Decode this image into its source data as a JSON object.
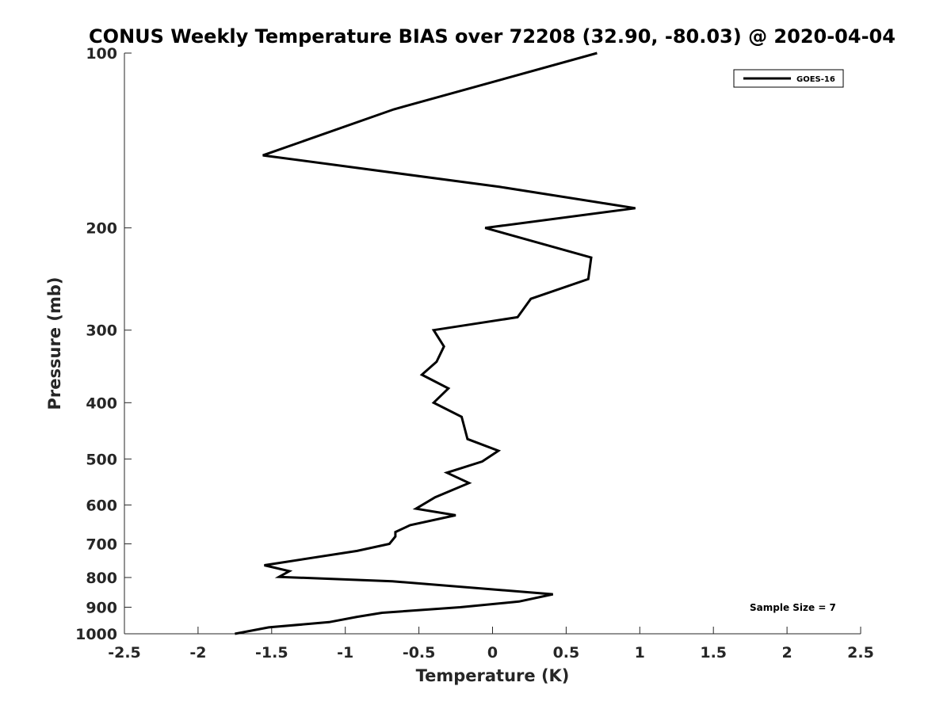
{
  "chart_data": {
    "type": "line",
    "title": "CONUS Weekly Temperature BIAS over 72208 (32.90, -80.03) @ 2020-04-04",
    "xlabel": "Temperature (K)",
    "ylabel": "Pressure (mb)",
    "xlim": [
      -2.5,
      2.5
    ],
    "ylim": [
      1000,
      100
    ],
    "y_scale": "log",
    "y_reversed": true,
    "grid": false,
    "legend_position": "top-right",
    "color": "#000000",
    "x_ticks": [
      "-2.5",
      "-2",
      "-1.5",
      "-1",
      "-0.5",
      "0",
      "0.5",
      "1",
      "1.5",
      "2",
      "2.5"
    ],
    "x_tick_values": [
      -2.5,
      -2,
      -1.5,
      -1,
      -0.5,
      0,
      0.5,
      1,
      1.5,
      2,
      2.5
    ],
    "y_ticks": [
      "100",
      "200",
      "300",
      "400",
      "500",
      "600",
      "700",
      "800",
      "900",
      "1000"
    ],
    "y_tick_values": [
      100,
      200,
      300,
      400,
      500,
      600,
      700,
      800,
      900,
      1000
    ],
    "series": [
      {
        "name": "GOES-16",
        "points": [
          {
            "x": 0.71,
            "p": 100
          },
          {
            "x": -0.67,
            "p": 125
          },
          {
            "x": -1.56,
            "p": 150
          },
          {
            "x": 0.05,
            "p": 170
          },
          {
            "x": 0.97,
            "p": 185
          },
          {
            "x": -0.05,
            "p": 200
          },
          {
            "x": 0.67,
            "p": 225
          },
          {
            "x": 0.65,
            "p": 245
          },
          {
            "x": 0.26,
            "p": 265
          },
          {
            "x": 0.17,
            "p": 285
          },
          {
            "x": -0.4,
            "p": 300
          },
          {
            "x": -0.33,
            "p": 320
          },
          {
            "x": -0.38,
            "p": 340
          },
          {
            "x": -0.48,
            "p": 358
          },
          {
            "x": -0.3,
            "p": 378
          },
          {
            "x": -0.4,
            "p": 400
          },
          {
            "x": -0.21,
            "p": 423
          },
          {
            "x": -0.19,
            "p": 442
          },
          {
            "x": -0.17,
            "p": 462
          },
          {
            "x": 0.04,
            "p": 484
          },
          {
            "x": -0.07,
            "p": 505
          },
          {
            "x": -0.31,
            "p": 528
          },
          {
            "x": -0.16,
            "p": 550
          },
          {
            "x": -0.39,
            "p": 582
          },
          {
            "x": -0.52,
            "p": 609
          },
          {
            "x": -0.25,
            "p": 625
          },
          {
            "x": -0.56,
            "p": 650
          },
          {
            "x": -0.66,
            "p": 668
          },
          {
            "x": -0.66,
            "p": 680
          },
          {
            "x": -0.7,
            "p": 700
          },
          {
            "x": -0.92,
            "p": 720
          },
          {
            "x": -1.55,
            "p": 762
          },
          {
            "x": -1.38,
            "p": 780
          },
          {
            "x": -1.45,
            "p": 798
          },
          {
            "x": -0.68,
            "p": 812
          },
          {
            "x": 0.41,
            "p": 855
          },
          {
            "x": 0.18,
            "p": 880
          },
          {
            "x": -0.22,
            "p": 900
          },
          {
            "x": -0.75,
            "p": 920
          },
          {
            "x": -0.92,
            "p": 935
          },
          {
            "x": -1.11,
            "p": 955
          },
          {
            "x": -1.52,
            "p": 975
          },
          {
            "x": -1.75,
            "p": 1000
          }
        ]
      }
    ],
    "annotations": [
      "Sample Size = 7"
    ]
  }
}
